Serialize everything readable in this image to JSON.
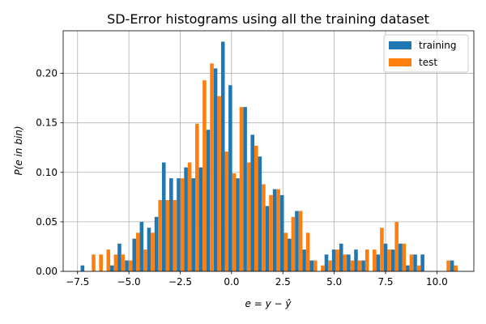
{
  "chart_data": {
    "type": "bar",
    "title": "SD-Error histograms using all the training dataset",
    "xlabel": "e = y − ŷ",
    "ylabel": "P(e in bin)",
    "xlim": [
      -8.2,
      11.8
    ],
    "ylim": [
      0,
      0.243
    ],
    "xticks": [
      -7.5,
      -5.0,
      -2.5,
      0.0,
      2.5,
      5.0,
      7.5,
      10.0
    ],
    "xtick_labels": [
      "−7.5",
      "−5.0",
      "−2.5",
      "0.0",
      "2.5",
      "5.0",
      "7.5",
      "10.0"
    ],
    "yticks": [
      0.0,
      0.05,
      0.1,
      0.15,
      0.2
    ],
    "ytick_labels": [
      "0.00",
      "0.05",
      "0.10",
      "0.15",
      "0.20"
    ],
    "grid": true,
    "legend_position": "top-right",
    "bin_start": -7.35,
    "bin_width": 0.36,
    "series": [
      {
        "name": "training",
        "color": "#1f77b4",
        "values": [
          0.006,
          0,
          0,
          0,
          0.006,
          0.028,
          0.011,
          0.033,
          0.05,
          0.044,
          0.055,
          0.11,
          0.094,
          0.094,
          0.105,
          0.094,
          0.105,
          0.143,
          0.205,
          0.232,
          0.188,
          0.094,
          0.166,
          0.138,
          0.116,
          0.066,
          0.083,
          0.077,
          0.033,
          0.061,
          0.022,
          0.011,
          0,
          0.017,
          0.022,
          0.028,
          0.017,
          0.022,
          0.011,
          0,
          0.017,
          0.028,
          0.022,
          0.028,
          0.006,
          0.017,
          0.017,
          0,
          0,
          0,
          0.011
        ]
      },
      {
        "name": "test",
        "color": "#ff7f0e",
        "values": [
          0,
          0.017,
          0.017,
          0.022,
          0.017,
          0.017,
          0.011,
          0.039,
          0.022,
          0.039,
          0.072,
          0.072,
          0.072,
          0.094,
          0.11,
          0.149,
          0.193,
          0.21,
          0.177,
          0.121,
          0.099,
          0.166,
          0.11,
          0.127,
          0.088,
          0.077,
          0.083,
          0.039,
          0.055,
          0.061,
          0.039,
          0.011,
          0.006,
          0.011,
          0.022,
          0.017,
          0.011,
          0.011,
          0.022,
          0.022,
          0.044,
          0.022,
          0.05,
          0.028,
          0.017,
          0.006,
          0,
          0,
          0,
          0.011,
          0.006
        ]
      }
    ]
  }
}
